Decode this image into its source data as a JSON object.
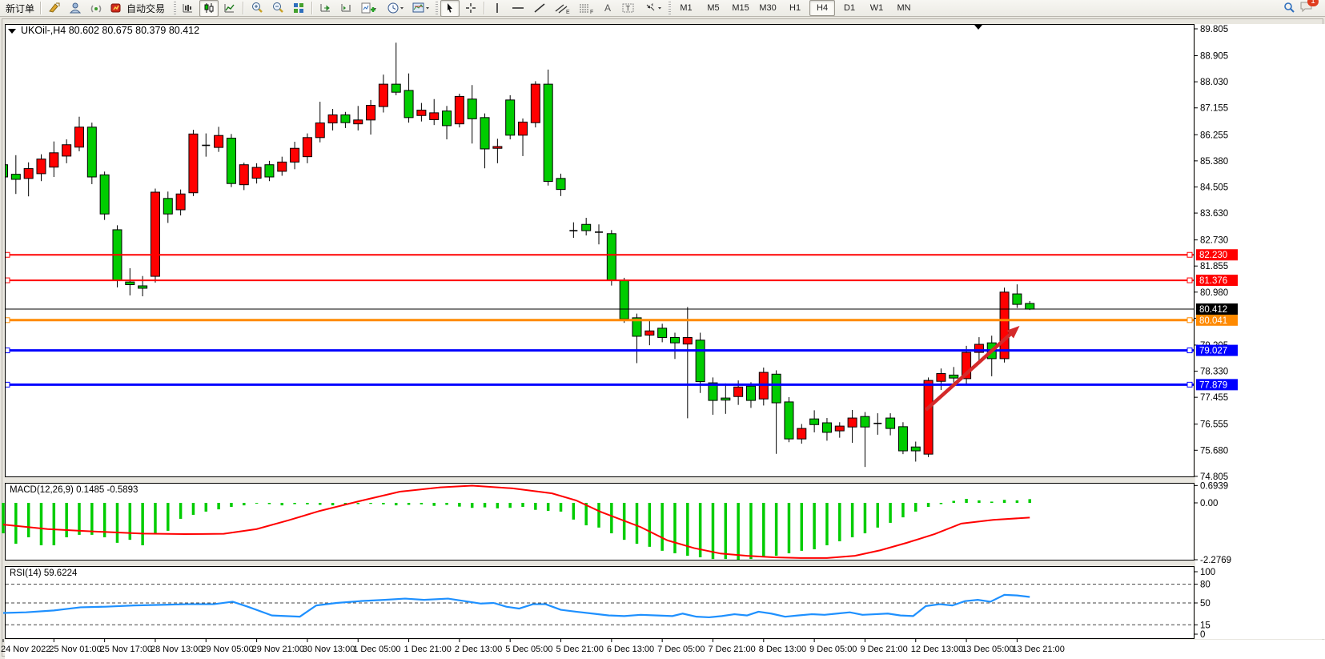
{
  "toolbar": {
    "new_order_label": "新订单",
    "auto_trading_label": "自动交易",
    "timeframes": [
      "M1",
      "M5",
      "M15",
      "M30",
      "H1",
      "H4",
      "D1",
      "W1",
      "MN"
    ],
    "active_timeframe": "H4",
    "notification_count": "1",
    "icons": [
      "new-order",
      "history-gold",
      "profile",
      "signals",
      "auto-trading",
      "bars-chart",
      "candles-chart",
      "line-chart",
      "zoom-in",
      "zoom-out",
      "tile-windows",
      "auto-scroll",
      "chart-shift",
      "add-indicator",
      "period-clock",
      "chart-template",
      "cursor",
      "crosshair",
      "vertical-line",
      "horizontal-line",
      "trend-line",
      "equidistant-channel",
      "fibonacci",
      "text",
      "text-label",
      "arrows",
      "search",
      "chat"
    ]
  },
  "chart": {
    "symbol_title": "UKOil-,H4",
    "ohlc_text": "80.602 80.675 80.379 80.412"
  },
  "chart_data": {
    "type": "candlestick",
    "symbol": "UKOil-",
    "timeframe": "H4",
    "current_bar": {
      "open": 80.602,
      "high": 80.675,
      "low": 80.379,
      "close": 80.412
    },
    "up_color": "#ff0000",
    "down_color": "#00cc00",
    "price_axis": {
      "max": 89.805,
      "min": 74.805,
      "ticks": [
        89.805,
        88.905,
        88.03,
        87.155,
        86.255,
        85.38,
        84.505,
        83.63,
        82.73,
        81.855,
        80.98,
        80.105,
        79.205,
        78.33,
        77.455,
        76.555,
        75.68,
        74.805
      ]
    },
    "x_labels": [
      "24 Nov 2022",
      "25 Nov 01:00",
      "25 Nov 17:00",
      "28 Nov 13:00",
      "29 Nov 05:00",
      "29 Nov 21:00",
      "30 Nov 13:00",
      "1 Dec 05:00",
      "1 Dec 21:00",
      "2 Dec 13:00",
      "5 Dec 05:00",
      "5 Dec 21:00",
      "6 Dec 13:00",
      "7 Dec 05:00",
      "7 Dec 21:00",
      "8 Dec 13:00",
      "9 Dec 05:00",
      "9 Dec 21:00",
      "12 Dec 13:00",
      "13 Dec 05:00",
      "13 Dec 21:00"
    ],
    "candles": [
      [
        85.25,
        85.32,
        84.54,
        84.84
      ],
      [
        84.93,
        85.57,
        84.27,
        84.76
      ],
      [
        84.79,
        85.33,
        84.19,
        85.12
      ],
      [
        84.95,
        85.6,
        84.7,
        85.44
      ],
      [
        85.17,
        86.03,
        84.84,
        85.65
      ],
      [
        85.54,
        86.1,
        85.3,
        85.92
      ],
      [
        85.84,
        86.86,
        85.7,
        86.51
      ],
      [
        86.51,
        86.66,
        84.6,
        84.84
      ],
      [
        84.91,
        85.02,
        83.4,
        83.6
      ],
      [
        83.07,
        83.22,
        81.14,
        81.37
      ],
      [
        81.32,
        81.78,
        80.87,
        81.23
      ],
      [
        81.19,
        81.52,
        80.84,
        81.11
      ],
      [
        81.51,
        84.45,
        81.3,
        84.33
      ],
      [
        84.12,
        84.35,
        83.3,
        83.6
      ],
      [
        83.74,
        84.42,
        83.55,
        84.27
      ],
      [
        84.31,
        86.42,
        84.2,
        86.28
      ],
      [
        85.92,
        86.3,
        85.52,
        85.9
      ],
      [
        85.83,
        86.52,
        85.68,
        86.23
      ],
      [
        86.14,
        86.28,
        84.5,
        84.62
      ],
      [
        84.58,
        85.32,
        84.4,
        85.25
      ],
      [
        84.8,
        85.3,
        84.62,
        85.16
      ],
      [
        85.25,
        85.38,
        84.7,
        84.84
      ],
      [
        85.03,
        85.52,
        84.88,
        85.34
      ],
      [
        85.34,
        86.02,
        85.1,
        85.8
      ],
      [
        85.52,
        86.3,
        85.3,
        86.16
      ],
      [
        86.16,
        87.36,
        86.0,
        86.65
      ],
      [
        86.65,
        87.12,
        86.4,
        86.92
      ],
      [
        86.92,
        87.02,
        86.48,
        86.66
      ],
      [
        86.62,
        87.22,
        86.4,
        86.75
      ],
      [
        86.75,
        87.42,
        86.26,
        87.24
      ],
      [
        87.2,
        88.27,
        87.0,
        87.95
      ],
      [
        87.95,
        89.34,
        87.58,
        87.68
      ],
      [
        87.74,
        88.31,
        86.66,
        86.83
      ],
      [
        86.9,
        87.32,
        86.7,
        87.08
      ],
      [
        86.76,
        87.45,
        86.58,
        86.99
      ],
      [
        87.05,
        87.22,
        86.1,
        86.56
      ],
      [
        86.62,
        87.63,
        86.5,
        87.54
      ],
      [
        87.45,
        87.92,
        85.96,
        86.79
      ],
      [
        86.83,
        86.97,
        85.13,
        85.78
      ],
      [
        85.8,
        86.12,
        85.3,
        85.86
      ],
      [
        87.42,
        87.58,
        86.1,
        86.24
      ],
      [
        86.24,
        86.8,
        85.54,
        86.68
      ],
      [
        86.66,
        88.05,
        86.5,
        87.95
      ],
      [
        87.95,
        88.44,
        84.55,
        84.69
      ],
      [
        84.79,
        84.95,
        84.2,
        84.42
      ],
      [
        83.06,
        83.32,
        82.8,
        83.04
      ],
      [
        83.25,
        83.47,
        82.88,
        83.04
      ],
      [
        83.0,
        83.25,
        82.58,
        82.99
      ],
      [
        82.94,
        83.06,
        81.2,
        81.38
      ],
      [
        81.38,
        81.46,
        79.95,
        80.08
      ],
      [
        80.12,
        80.26,
        78.6,
        79.5
      ],
      [
        79.54,
        80.02,
        79.2,
        79.68
      ],
      [
        79.77,
        79.92,
        79.3,
        79.46
      ],
      [
        79.46,
        79.62,
        78.74,
        79.28
      ],
      [
        79.24,
        80.48,
        76.75,
        79.46
      ],
      [
        79.37,
        79.62,
        77.6,
        77.98
      ],
      [
        77.94,
        78.12,
        76.87,
        77.35
      ],
      [
        77.43,
        77.92,
        76.9,
        77.36
      ],
      [
        77.48,
        78.02,
        77.2,
        77.8
      ],
      [
        77.83,
        77.96,
        77.1,
        77.35
      ],
      [
        77.4,
        78.45,
        77.18,
        78.29
      ],
      [
        78.23,
        78.36,
        75.56,
        77.27
      ],
      [
        77.3,
        77.46,
        75.95,
        76.06
      ],
      [
        76.06,
        76.56,
        75.9,
        76.41
      ],
      [
        76.73,
        77.02,
        76.28,
        76.54
      ],
      [
        76.6,
        76.76,
        76.0,
        76.28
      ],
      [
        76.33,
        76.62,
        76.1,
        76.49
      ],
      [
        76.46,
        77.03,
        75.93,
        76.76
      ],
      [
        76.81,
        76.96,
        75.12,
        76.46
      ],
      [
        76.55,
        76.92,
        76.2,
        76.58
      ],
      [
        76.76,
        76.92,
        76.18,
        76.41
      ],
      [
        76.47,
        76.62,
        75.55,
        75.66
      ],
      [
        75.79,
        75.97,
        75.3,
        75.66
      ],
      [
        75.55,
        78.12,
        75.45,
        78.02
      ],
      [
        77.99,
        78.42,
        77.7,
        78.25
      ],
      [
        78.2,
        78.47,
        77.95,
        78.1
      ],
      [
        78.08,
        79.18,
        77.9,
        78.96
      ],
      [
        78.96,
        79.47,
        78.68,
        79.23
      ],
      [
        79.28,
        79.52,
        78.16,
        78.75
      ],
      [
        78.75,
        81.13,
        78.62,
        80.98
      ],
      [
        80.92,
        81.24,
        80.45,
        80.57
      ],
      [
        80.6,
        80.68,
        80.38,
        80.41
      ]
    ],
    "horizontal_lines": [
      {
        "price": 82.23,
        "label": "82.230",
        "color": "#ff0000",
        "width": 2,
        "handles": true
      },
      {
        "price": 81.376,
        "label": "81.376",
        "color": "#ff0000",
        "width": 2,
        "handles": true
      },
      {
        "price": 80.041,
        "label": "80.041",
        "color": "#ff8a00",
        "width": 3,
        "handles": true
      },
      {
        "price": 79.027,
        "label": "79.027",
        "color": "#0000ff",
        "width": 3,
        "handles": true
      },
      {
        "price": 77.879,
        "label": "77.879",
        "color": "#0000ff",
        "width": 3,
        "handles": true
      }
    ],
    "current_price_line": {
      "price": 80.412,
      "label": "80.412",
      "color": "#000000"
    },
    "arrow_annotation": {
      "from_index": 72.8,
      "from_price": 77.03,
      "to_index": 80.2,
      "to_price": 79.85,
      "color": "#d42a2a"
    },
    "indicators": {
      "macd": {
        "label": "MACD(12,26,9)",
        "values_text": "0.1485 -0.5893",
        "axis_labels": [
          "0.6939",
          "0.00",
          "-2.2769"
        ],
        "axis_values": [
          0.6939,
          0.0,
          -2.2769
        ],
        "histogram_color": "#00cc00",
        "signal_color": "#ff0000",
        "histogram": [
          -1.22,
          -1.64,
          -1.38,
          -1.7,
          -1.7,
          -1.38,
          -1.28,
          -1.28,
          -1.38,
          -1.6,
          -1.48,
          -1.7,
          -1.22,
          -1.12,
          -0.64,
          -0.48,
          -0.35,
          -0.26,
          -0.16,
          -0.1,
          -0.03,
          -0.05,
          -0.1,
          -0.05,
          -0.06,
          -0.08,
          -0.1,
          -0.08,
          -0.05,
          -0.04,
          -0.06,
          -0.1,
          -0.08,
          -0.06,
          -0.12,
          -0.08,
          -0.15,
          -0.2,
          -0.18,
          -0.22,
          -0.2,
          -0.16,
          -0.28,
          -0.32,
          -0.35,
          -0.67,
          -0.9,
          -0.99,
          -1.22,
          -1.48,
          -1.64,
          -1.76,
          -1.92,
          -2.02,
          -2.12,
          -2.18,
          -2.25,
          -2.25,
          -2.28,
          -2.25,
          -2.18,
          -2.12,
          -2.02,
          -1.92,
          -1.86,
          -1.7,
          -1.54,
          -1.38,
          -1.22,
          -0.99,
          -0.8,
          -0.58,
          -0.35,
          -0.16,
          -0.05,
          0.08,
          0.16,
          0.1,
          0.05,
          0.12,
          0.1,
          0.1485
        ],
        "signal": [
          [
            0,
            -0.87
          ],
          [
            3.5,
            -1.05
          ],
          [
            7.3,
            -1.15
          ],
          [
            11,
            -1.23
          ],
          [
            14.3,
            -1.25
          ],
          [
            17.4,
            -1.24
          ],
          [
            20,
            -1.05
          ],
          [
            22.5,
            -0.7
          ],
          [
            25,
            -0.32
          ],
          [
            28.2,
            0.08
          ],
          [
            31.3,
            0.45
          ],
          [
            34.5,
            0.62
          ],
          [
            37,
            0.69
          ],
          [
            40.2,
            0.58
          ],
          [
            43.3,
            0.38
          ],
          [
            45.2,
            0.1
          ],
          [
            47.1,
            -0.35
          ],
          [
            50.3,
            -0.97
          ],
          [
            52.4,
            -1.5
          ],
          [
            54.5,
            -1.81
          ],
          [
            56.6,
            -2.03
          ],
          [
            58.7,
            -2.12
          ],
          [
            60.8,
            -2.18
          ],
          [
            62.9,
            -2.21
          ],
          [
            65,
            -2.21
          ],
          [
            67.2,
            -2.12
          ],
          [
            69.2,
            -1.9
          ],
          [
            71.3,
            -1.6
          ],
          [
            73.5,
            -1.25
          ],
          [
            75.6,
            -0.83
          ],
          [
            78.1,
            -0.68
          ],
          [
            81,
            -0.5893
          ]
        ]
      },
      "rsi": {
        "label": "RSI(14)",
        "value_text": "59.6224",
        "line_color": "#1e90ff",
        "axis_labels": [
          "100",
          "80",
          "50",
          "15",
          "0"
        ],
        "level_lines": [
          80,
          50,
          15
        ],
        "points": [
          [
            0,
            34
          ],
          [
            1.8,
            35
          ],
          [
            4,
            38
          ],
          [
            6.1,
            43
          ],
          [
            8.1,
            44
          ],
          [
            10.3,
            46
          ],
          [
            12.4,
            47
          ],
          [
            14.5,
            48
          ],
          [
            16.6,
            48
          ],
          [
            18.1,
            52
          ],
          [
            19.3,
            44
          ],
          [
            21.2,
            30
          ],
          [
            23.4,
            28
          ],
          [
            24.7,
            46
          ],
          [
            26.3,
            50
          ],
          [
            28.2,
            53
          ],
          [
            30.1,
            55
          ],
          [
            31.7,
            57
          ],
          [
            33.2,
            55
          ],
          [
            35.1,
            57
          ],
          [
            36.4,
            53
          ],
          [
            37.7,
            49
          ],
          [
            38.7,
            50
          ],
          [
            39.7,
            44
          ],
          [
            40.7,
            41
          ],
          [
            41.8,
            48
          ],
          [
            42.8,
            48
          ],
          [
            44,
            39
          ],
          [
            45.2,
            36
          ],
          [
            46.5,
            33
          ],
          [
            47.8,
            30
          ],
          [
            49,
            29
          ],
          [
            50.3,
            31
          ],
          [
            51.6,
            30
          ],
          [
            52.8,
            29
          ],
          [
            53.6,
            33
          ],
          [
            54.7,
            28
          ],
          [
            55.7,
            27
          ],
          [
            56.7,
            29
          ],
          [
            57.7,
            32
          ],
          [
            58.7,
            30
          ],
          [
            59.6,
            36
          ],
          [
            60.6,
            33
          ],
          [
            61.7,
            28
          ],
          [
            62.7,
            30
          ],
          [
            63.8,
            32
          ],
          [
            64.8,
            31
          ],
          [
            65.8,
            33
          ],
          [
            66.8,
            35
          ],
          [
            67.8,
            31
          ],
          [
            68.8,
            32
          ],
          [
            69.8,
            33
          ],
          [
            70.8,
            30
          ],
          [
            71.8,
            29
          ],
          [
            72.8,
            45
          ],
          [
            73.9,
            48
          ],
          [
            74.9,
            46
          ],
          [
            75.9,
            53
          ],
          [
            76.9,
            55
          ],
          [
            77.9,
            52
          ],
          [
            79,
            63
          ],
          [
            80,
            62
          ],
          [
            81,
            59.62
          ]
        ]
      }
    }
  }
}
